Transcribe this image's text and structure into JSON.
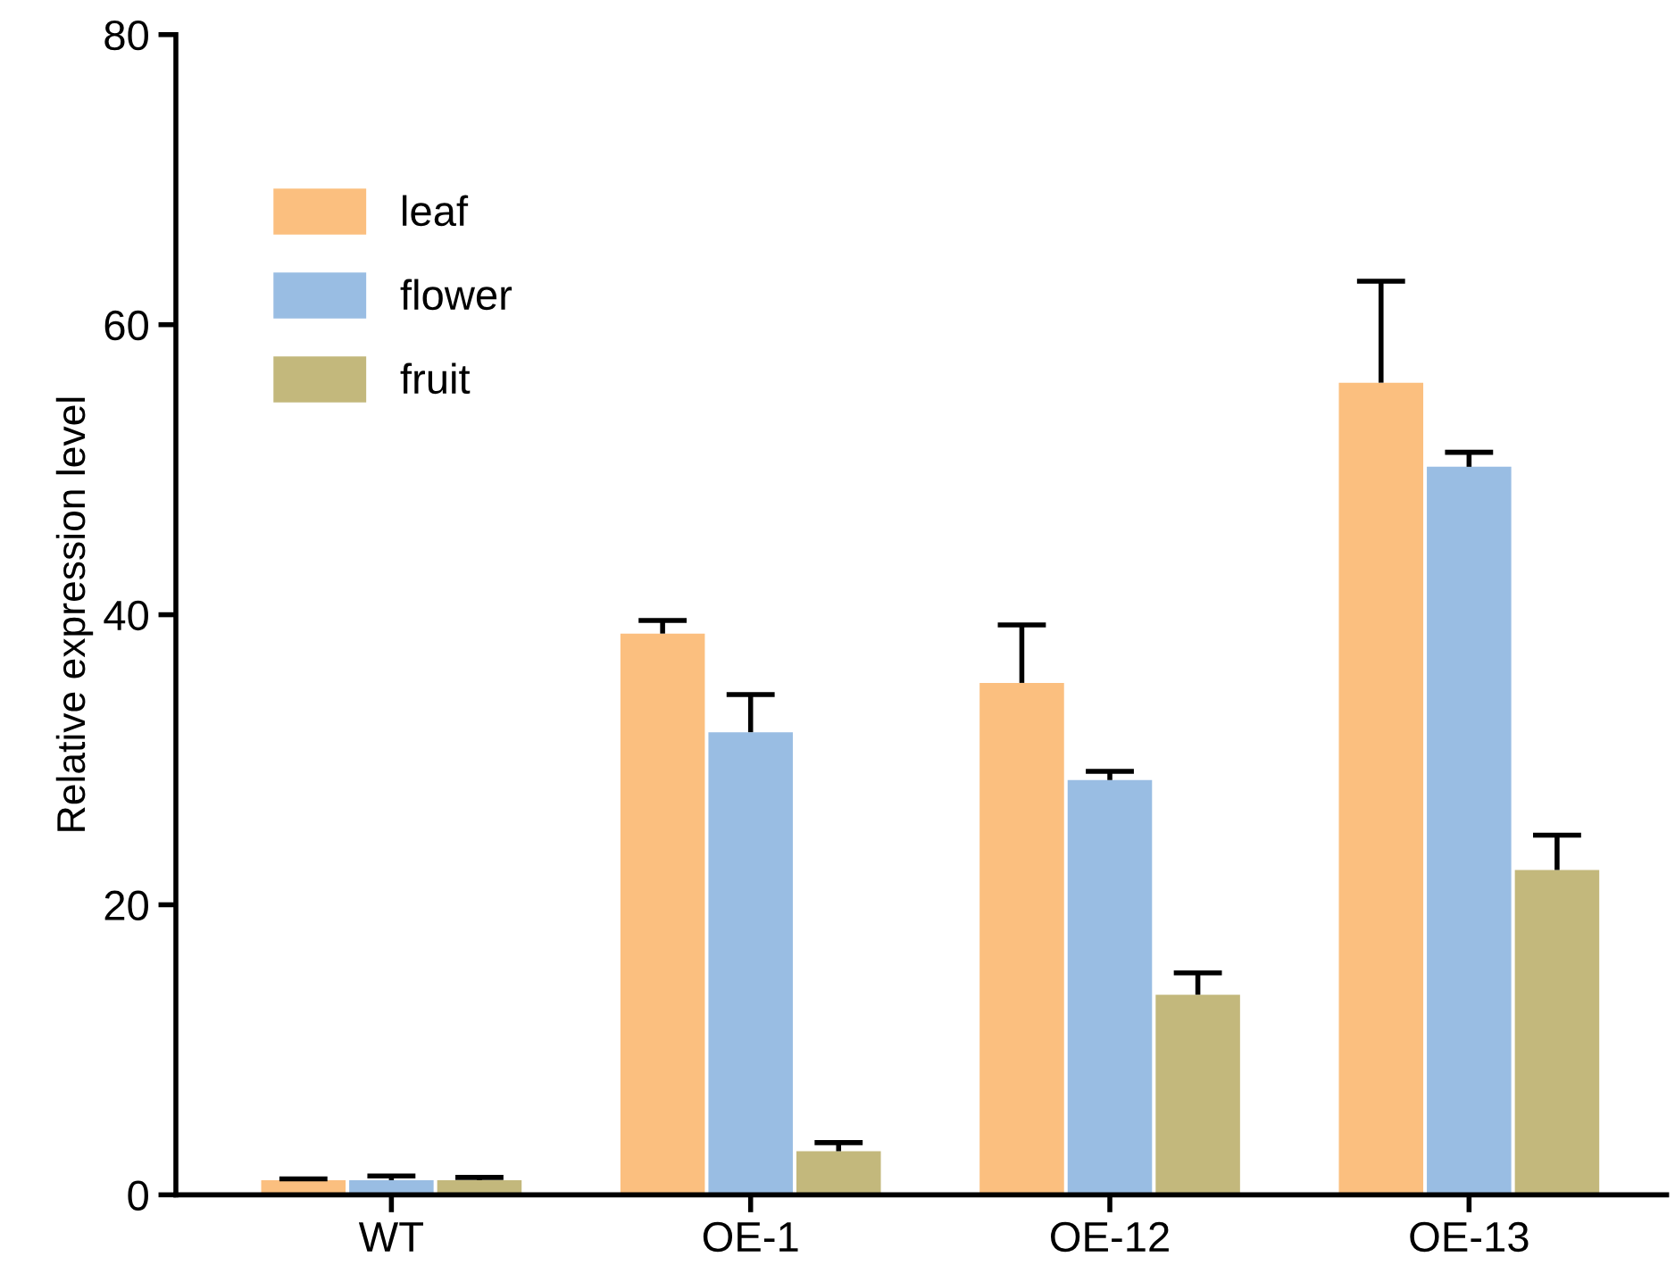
{
  "chart_data": {
    "type": "bar",
    "ylabel": "Relative expression level",
    "categories": [
      "WT",
      "OE-1",
      "OE-12",
      "OE-13"
    ],
    "series": [
      {
        "name": "leaf",
        "color": "#fbbf7f",
        "values": [
          1.0,
          38.7,
          35.3,
          56.0
        ],
        "errors": [
          [
            1.0,
            1.1
          ],
          [
            38.7,
            39.6
          ],
          [
            35.3,
            39.3
          ],
          [
            56.0,
            63.0
          ]
        ]
      },
      {
        "name": "flower",
        "color": "#99bde3",
        "values": [
          1.0,
          31.9,
          28.6,
          50.2
        ],
        "errors": [
          [
            1.0,
            1.3
          ],
          [
            31.9,
            34.5
          ],
          [
            28.6,
            29.2
          ],
          [
            50.2,
            51.2
          ]
        ]
      },
      {
        "name": "fruit",
        "color": "#c3b87c",
        "values": [
          1.0,
          3.0,
          13.8,
          22.4
        ],
        "errors": [
          [
            1.0,
            1.2
          ],
          [
            3.0,
            3.6
          ],
          [
            13.8,
            15.3
          ],
          [
            22.4,
            24.8
          ]
        ]
      }
    ],
    "ylim": [
      0,
      80
    ],
    "yticks": [
      0,
      20,
      40,
      60,
      80
    ],
    "grid": false,
    "legend": "top left"
  }
}
